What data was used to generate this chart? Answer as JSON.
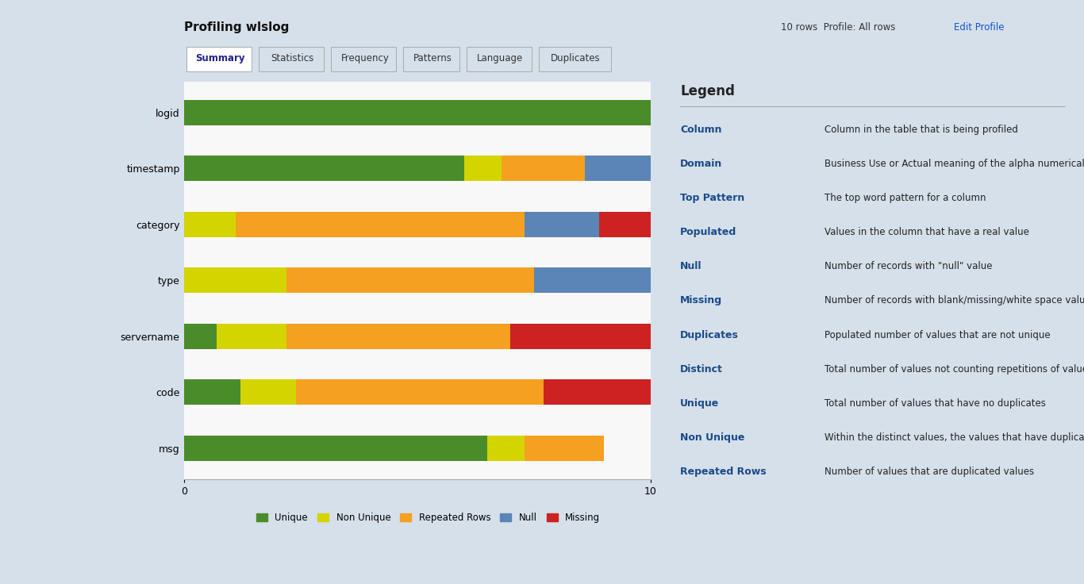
{
  "title": "Profiling wlslog",
  "rows": [
    "logid",
    "timestamp",
    "category",
    "type",
    "servername",
    "code",
    "msg"
  ],
  "categories": [
    "Unique",
    "Non Unique",
    "Repeated Rows",
    "Null",
    "Missing"
  ],
  "colors": {
    "Unique": "#4a8c2a",
    "Non Unique": "#d4d400",
    "Repeated Rows": "#f5a020",
    "Null": "#5b85b5",
    "Missing": "#cc2222"
  },
  "data": {
    "logid": [
      10.0,
      0.0,
      0.0,
      0.0,
      0.0
    ],
    "timestamp": [
      6.0,
      0.8,
      1.8,
      1.4,
      0.0
    ],
    "category": [
      0.0,
      1.1,
      6.2,
      1.6,
      1.1
    ],
    "type": [
      0.0,
      2.2,
      5.3,
      2.5,
      0.0
    ],
    "servername": [
      0.7,
      1.5,
      4.8,
      0.0,
      3.0
    ],
    "code": [
      1.2,
      1.2,
      5.3,
      0.0,
      2.3
    ],
    "msg": [
      6.5,
      0.8,
      1.7,
      0.0,
      0.0
    ]
  },
  "xlim": [
    0,
    10
  ],
  "xticks": [
    0,
    10
  ],
  "legend_items": [
    "Unique",
    "Non Unique",
    "Repeated Rows",
    "Null",
    "Missing"
  ],
  "legend_colors": [
    "#4a8c2a",
    "#d4d400",
    "#f5a020",
    "#5b85b5",
    "#cc2222"
  ],
  "bg_color": "#f0f4f8",
  "chart_bg": "#ffffff",
  "bar_height": 0.45,
  "legend_panel": {
    "title": "Legend",
    "items": [
      [
        "Column",
        "Column in the table that is being profiled"
      ],
      [
        "Domain",
        "Business Use or Actual meaning of the alpha numerical"
      ],
      [
        "Top Pattern",
        "The top word pattern for a column"
      ],
      [
        "Populated",
        "Values in the column that have a real value"
      ],
      [
        "Null",
        "Number of records with \"null\" value"
      ],
      [
        "Missing",
        "Number of records with blank/missing/white space values"
      ],
      [
        "Duplicates",
        "Populated number of values that are not unique"
      ],
      [
        "Distinct",
        "Total number of values not counting repetitions of values"
      ],
      [
        "Unique",
        "Total number of values that have no duplicates"
      ],
      [
        "Non Unique",
        "Within the distinct values, the values that have duplicates"
      ],
      [
        "Repeated Rows",
        "Number of values that are duplicated values"
      ]
    ]
  }
}
